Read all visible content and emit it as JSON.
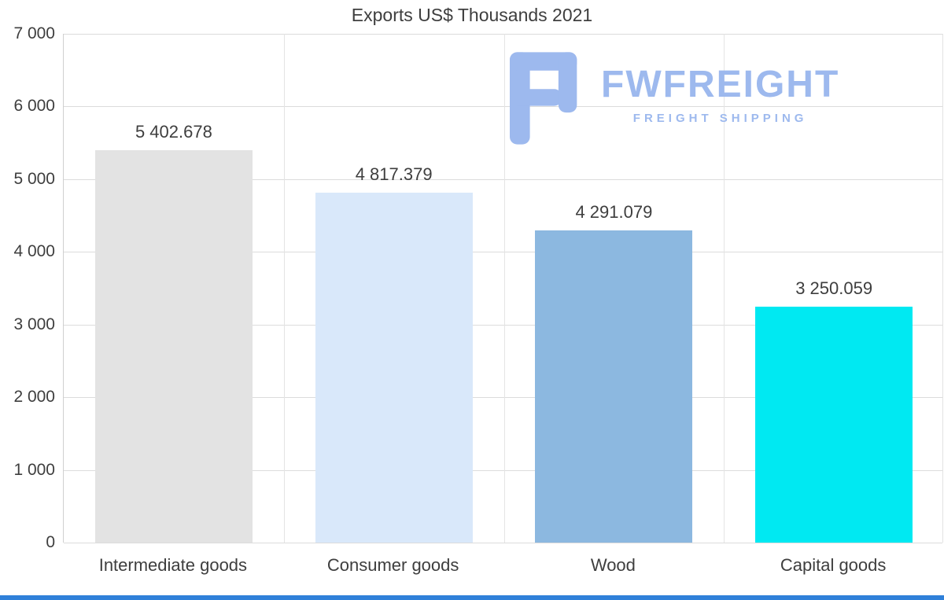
{
  "page": {
    "title": "Exports US$ Thousands 2021"
  },
  "logo": {
    "icon": "fwfreight-f-icon",
    "wordmark": "FWFREIGHT",
    "subtitle": "FREIGHT SHIPPING",
    "color": "#9db9ee"
  },
  "colors": {
    "text": "#3e3e3e",
    "grid_horizontal": "#dcdcdc",
    "grid_vertical": "#e4e4e4",
    "background": "#ffffff",
    "footer_strip": "#2f80d9"
  },
  "chart_data": {
    "type": "bar",
    "title": "Exports US$ Thousands 2021",
    "categories": [
      "Intermediate goods",
      "Consumer goods",
      "Wood",
      "Capital goods"
    ],
    "values": [
      5402.678,
      4817.379,
      4291.079,
      3250.059
    ],
    "value_labels": [
      "5 402.678",
      "4 817.379",
      "4 291.079",
      "3 250.059"
    ],
    "bar_colors": [
      "#e3e3e3",
      "#d9e8fa",
      "#8cb8e0",
      "#00e9f2"
    ],
    "xlabel": "",
    "ylabel": "",
    "ylim": [
      0,
      7000
    ],
    "ytick_labels": [
      "7 000",
      "6 000",
      "5 000",
      "4 000",
      "3 000",
      "2 000",
      "1 000",
      "0"
    ],
    "grid": true,
    "legend": false
  }
}
